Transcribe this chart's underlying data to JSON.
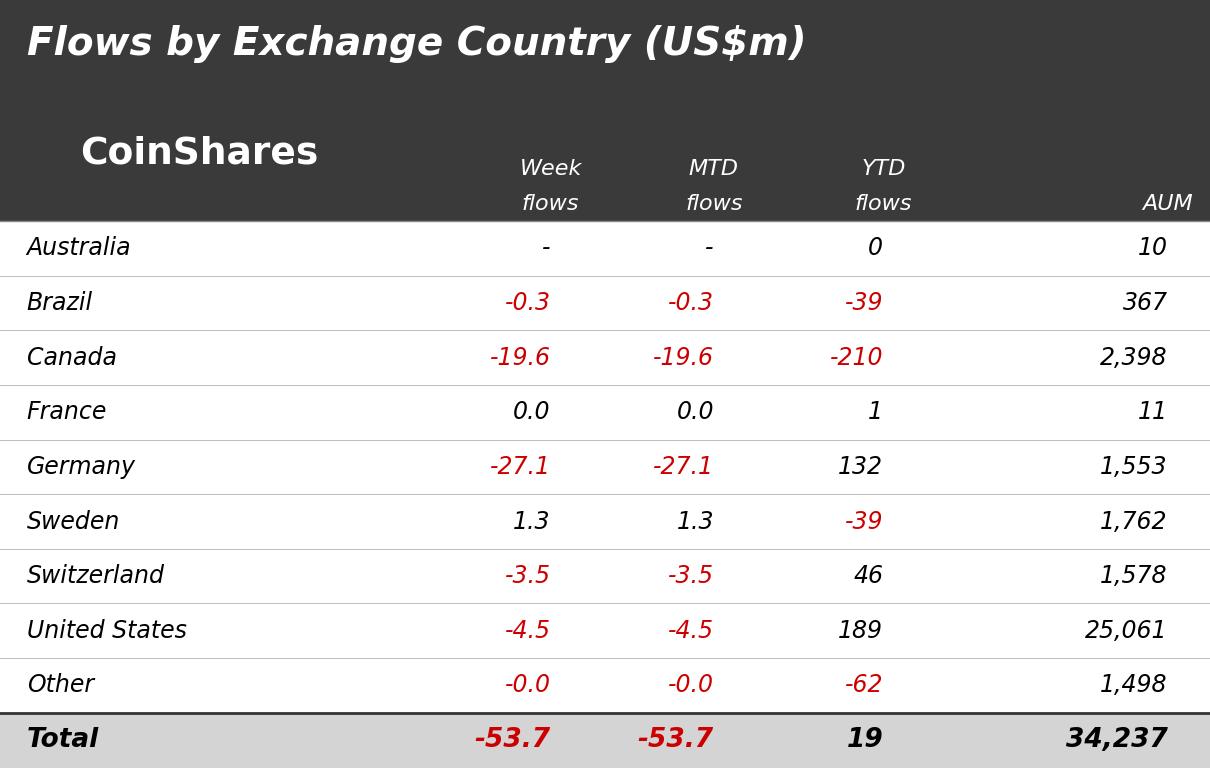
{
  "title": "Flows by Exchange Country (US$m)",
  "title_fontsize": 28,
  "header_bg_color": "#3a3a3a",
  "fig_bg_color": "#ffffff",
  "coinshares_text": "CoinShares",
  "col_headers_line1": [
    "Week",
    "MTD",
    "YTD",
    ""
  ],
  "col_headers_line2": [
    "flows",
    "flows",
    "flows",
    "AUM"
  ],
  "rows": [
    {
      "country": "Australia",
      "week": "-",
      "mtd": "-",
      "ytd": "0",
      "aum": "10",
      "week_color": "#000000",
      "mtd_color": "#000000",
      "ytd_color": "#000000",
      "aum_color": "#000000"
    },
    {
      "country": "Brazil",
      "week": "-0.3",
      "mtd": "-0.3",
      "ytd": "-39",
      "aum": "367",
      "week_color": "#cc0000",
      "mtd_color": "#cc0000",
      "ytd_color": "#cc0000",
      "aum_color": "#000000"
    },
    {
      "country": "Canada",
      "week": "-19.6",
      "mtd": "-19.6",
      "ytd": "-210",
      "aum": "2,398",
      "week_color": "#cc0000",
      "mtd_color": "#cc0000",
      "ytd_color": "#cc0000",
      "aum_color": "#000000"
    },
    {
      "country": "France",
      "week": "0.0",
      "mtd": "0.0",
      "ytd": "1",
      "aum": "11",
      "week_color": "#000000",
      "mtd_color": "#000000",
      "ytd_color": "#000000",
      "aum_color": "#000000"
    },
    {
      "country": "Germany",
      "week": "-27.1",
      "mtd": "-27.1",
      "ytd": "132",
      "aum": "1,553",
      "week_color": "#cc0000",
      "mtd_color": "#cc0000",
      "ytd_color": "#000000",
      "aum_color": "#000000"
    },
    {
      "country": "Sweden",
      "week": "1.3",
      "mtd": "1.3",
      "ytd": "-39",
      "aum": "1,762",
      "week_color": "#000000",
      "mtd_color": "#000000",
      "ytd_color": "#cc0000",
      "aum_color": "#000000"
    },
    {
      "country": "Switzerland",
      "week": "-3.5",
      "mtd": "-3.5",
      "ytd": "46",
      "aum": "1,578",
      "week_color": "#cc0000",
      "mtd_color": "#cc0000",
      "ytd_color": "#000000",
      "aum_color": "#000000"
    },
    {
      "country": "United States",
      "week": "-4.5",
      "mtd": "-4.5",
      "ytd": "189",
      "aum": "25,061",
      "week_color": "#cc0000",
      "mtd_color": "#cc0000",
      "ytd_color": "#000000",
      "aum_color": "#000000"
    },
    {
      "country": "Other",
      "week": "-0.0",
      "mtd": "-0.0",
      "ytd": "-62",
      "aum": "1,498",
      "week_color": "#cc0000",
      "mtd_color": "#cc0000",
      "ytd_color": "#cc0000",
      "aum_color": "#000000"
    }
  ],
  "total_row": {
    "country": "Total",
    "week": "-53.7",
    "mtd": "-53.7",
    "ytd": "19",
    "aum": "34,237",
    "week_color": "#cc0000",
    "mtd_color": "#cc0000",
    "ytd_color": "#000000",
    "aum_color": "#000000"
  }
}
